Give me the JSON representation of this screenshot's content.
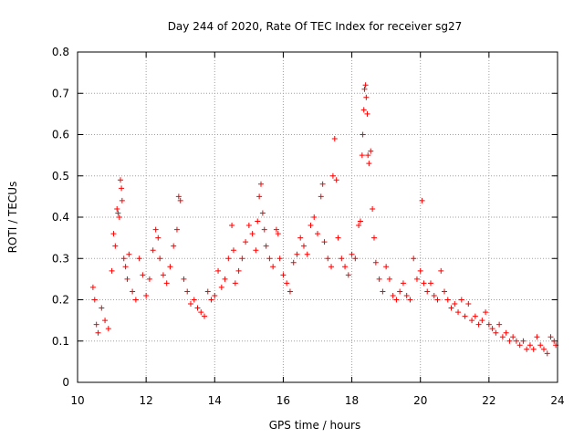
{
  "chart_data": {
    "type": "scatter",
    "title": "Day 244 of 2020, Rate Of TEC Index for receiver sg27",
    "xlabel": "GPS time / hours",
    "ylabel": "ROTI / TECUs",
    "xlim": [
      10,
      24
    ],
    "ylim": [
      0,
      0.8
    ],
    "grid": true,
    "marker": "+",
    "color": "#ff0000",
    "x_ticks": [
      "10",
      "12",
      "14",
      "16",
      "18",
      "20",
      "22",
      "24"
    ],
    "y_ticks": [
      "0",
      "0.1",
      "0.2",
      "0.3",
      "0.4",
      "0.5",
      "0.6",
      "0.7",
      "0.8"
    ],
    "x_tick_values": [
      10,
      12,
      14,
      16,
      18,
      20,
      22,
      24
    ],
    "y_tick_values": [
      0,
      0.1,
      0.2,
      0.3,
      0.4,
      0.5,
      0.6,
      0.7,
      0.8
    ],
    "series": [
      {
        "name": "sg27",
        "points": [
          [
            10.45,
            0.23
          ],
          [
            10.5,
            0.2
          ],
          [
            10.55,
            0.14
          ],
          [
            10.6,
            0.12
          ],
          [
            10.7,
            0.18
          ],
          [
            10.8,
            0.15
          ],
          [
            10.9,
            0.13
          ],
          [
            11.0,
            0.27
          ],
          [
            11.05,
            0.36
          ],
          [
            11.1,
            0.33
          ],
          [
            11.15,
            0.42
          ],
          [
            11.18,
            0.41
          ],
          [
            11.22,
            0.4
          ],
          [
            11.25,
            0.49
          ],
          [
            11.28,
            0.47
          ],
          [
            11.3,
            0.44
          ],
          [
            11.35,
            0.3
          ],
          [
            11.4,
            0.28
          ],
          [
            11.45,
            0.25
          ],
          [
            11.5,
            0.31
          ],
          [
            11.6,
            0.22
          ],
          [
            11.7,
            0.2
          ],
          [
            11.8,
            0.3
          ],
          [
            11.9,
            0.26
          ],
          [
            12.0,
            0.21
          ],
          [
            12.1,
            0.25
          ],
          [
            12.2,
            0.32
          ],
          [
            12.28,
            0.37
          ],
          [
            12.35,
            0.35
          ],
          [
            12.4,
            0.3
          ],
          [
            12.5,
            0.26
          ],
          [
            12.6,
            0.24
          ],
          [
            12.7,
            0.28
          ],
          [
            12.8,
            0.33
          ],
          [
            12.9,
            0.37
          ],
          [
            12.95,
            0.45
          ],
          [
            13.0,
            0.44
          ],
          [
            13.1,
            0.25
          ],
          [
            13.2,
            0.22
          ],
          [
            13.3,
            0.19
          ],
          [
            13.4,
            0.2
          ],
          [
            13.5,
            0.18
          ],
          [
            13.6,
            0.17
          ],
          [
            13.7,
            0.16
          ],
          [
            13.8,
            0.22
          ],
          [
            13.9,
            0.2
          ],
          [
            14.0,
            0.21
          ],
          [
            14.1,
            0.27
          ],
          [
            14.2,
            0.23
          ],
          [
            14.3,
            0.25
          ],
          [
            14.4,
            0.3
          ],
          [
            14.5,
            0.38
          ],
          [
            14.55,
            0.32
          ],
          [
            14.6,
            0.24
          ],
          [
            14.7,
            0.27
          ],
          [
            14.8,
            0.3
          ],
          [
            14.9,
            0.34
          ],
          [
            15.0,
            0.38
          ],
          [
            15.1,
            0.36
          ],
          [
            15.2,
            0.32
          ],
          [
            15.25,
            0.39
          ],
          [
            15.3,
            0.45
          ],
          [
            15.35,
            0.48
          ],
          [
            15.4,
            0.41
          ],
          [
            15.45,
            0.37
          ],
          [
            15.5,
            0.33
          ],
          [
            15.6,
            0.3
          ],
          [
            15.7,
            0.28
          ],
          [
            15.8,
            0.37
          ],
          [
            15.85,
            0.36
          ],
          [
            15.9,
            0.3
          ],
          [
            16.0,
            0.26
          ],
          [
            16.1,
            0.24
          ],
          [
            16.2,
            0.22
          ],
          [
            16.3,
            0.29
          ],
          [
            16.4,
            0.31
          ],
          [
            16.5,
            0.35
          ],
          [
            16.6,
            0.33
          ],
          [
            16.7,
            0.31
          ],
          [
            16.8,
            0.38
          ],
          [
            16.9,
            0.4
          ],
          [
            17.0,
            0.36
          ],
          [
            17.1,
            0.45
          ],
          [
            17.15,
            0.48
          ],
          [
            17.2,
            0.34
          ],
          [
            17.3,
            0.3
          ],
          [
            17.4,
            0.28
          ],
          [
            17.45,
            0.5
          ],
          [
            17.5,
            0.59
          ],
          [
            17.55,
            0.49
          ],
          [
            17.6,
            0.35
          ],
          [
            17.7,
            0.3
          ],
          [
            17.8,
            0.28
          ],
          [
            17.9,
            0.26
          ],
          [
            18.0,
            0.31
          ],
          [
            18.1,
            0.3
          ],
          [
            18.2,
            0.38
          ],
          [
            18.25,
            0.39
          ],
          [
            18.3,
            0.55
          ],
          [
            18.32,
            0.6
          ],
          [
            18.35,
            0.66
          ],
          [
            18.37,
            0.71
          ],
          [
            18.4,
            0.72
          ],
          [
            18.42,
            0.69
          ],
          [
            18.45,
            0.65
          ],
          [
            18.47,
            0.55
          ],
          [
            18.5,
            0.53
          ],
          [
            18.55,
            0.56
          ],
          [
            18.6,
            0.42
          ],
          [
            18.65,
            0.35
          ],
          [
            18.7,
            0.29
          ],
          [
            18.8,
            0.25
          ],
          [
            18.9,
            0.22
          ],
          [
            19.0,
            0.28
          ],
          [
            19.1,
            0.25
          ],
          [
            19.2,
            0.21
          ],
          [
            19.3,
            0.2
          ],
          [
            19.4,
            0.22
          ],
          [
            19.5,
            0.24
          ],
          [
            19.6,
            0.21
          ],
          [
            19.7,
            0.2
          ],
          [
            19.8,
            0.3
          ],
          [
            19.9,
            0.25
          ],
          [
            20.0,
            0.27
          ],
          [
            20.05,
            0.44
          ],
          [
            20.1,
            0.24
          ],
          [
            20.2,
            0.22
          ],
          [
            20.3,
            0.24
          ],
          [
            20.4,
            0.21
          ],
          [
            20.5,
            0.2
          ],
          [
            20.6,
            0.27
          ],
          [
            20.7,
            0.22
          ],
          [
            20.8,
            0.2
          ],
          [
            20.9,
            0.18
          ],
          [
            21.0,
            0.19
          ],
          [
            21.1,
            0.17
          ],
          [
            21.2,
            0.2
          ],
          [
            21.3,
            0.16
          ],
          [
            21.4,
            0.19
          ],
          [
            21.5,
            0.15
          ],
          [
            21.6,
            0.16
          ],
          [
            21.7,
            0.14
          ],
          [
            21.8,
            0.15
          ],
          [
            21.9,
            0.17
          ],
          [
            22.0,
            0.14
          ],
          [
            22.1,
            0.13
          ],
          [
            22.2,
            0.12
          ],
          [
            22.3,
            0.14
          ],
          [
            22.4,
            0.11
          ],
          [
            22.5,
            0.12
          ],
          [
            22.6,
            0.1
          ],
          [
            22.7,
            0.11
          ],
          [
            22.8,
            0.1
          ],
          [
            22.9,
            0.09
          ],
          [
            23.0,
            0.1
          ],
          [
            23.1,
            0.08
          ],
          [
            23.2,
            0.09
          ],
          [
            23.3,
            0.08
          ],
          [
            23.4,
            0.11
          ],
          [
            23.5,
            0.09
          ],
          [
            23.6,
            0.08
          ],
          [
            23.7,
            0.07
          ],
          [
            23.8,
            0.11
          ],
          [
            23.9,
            0.1
          ],
          [
            23.95,
            0.09
          ]
        ]
      }
    ]
  }
}
